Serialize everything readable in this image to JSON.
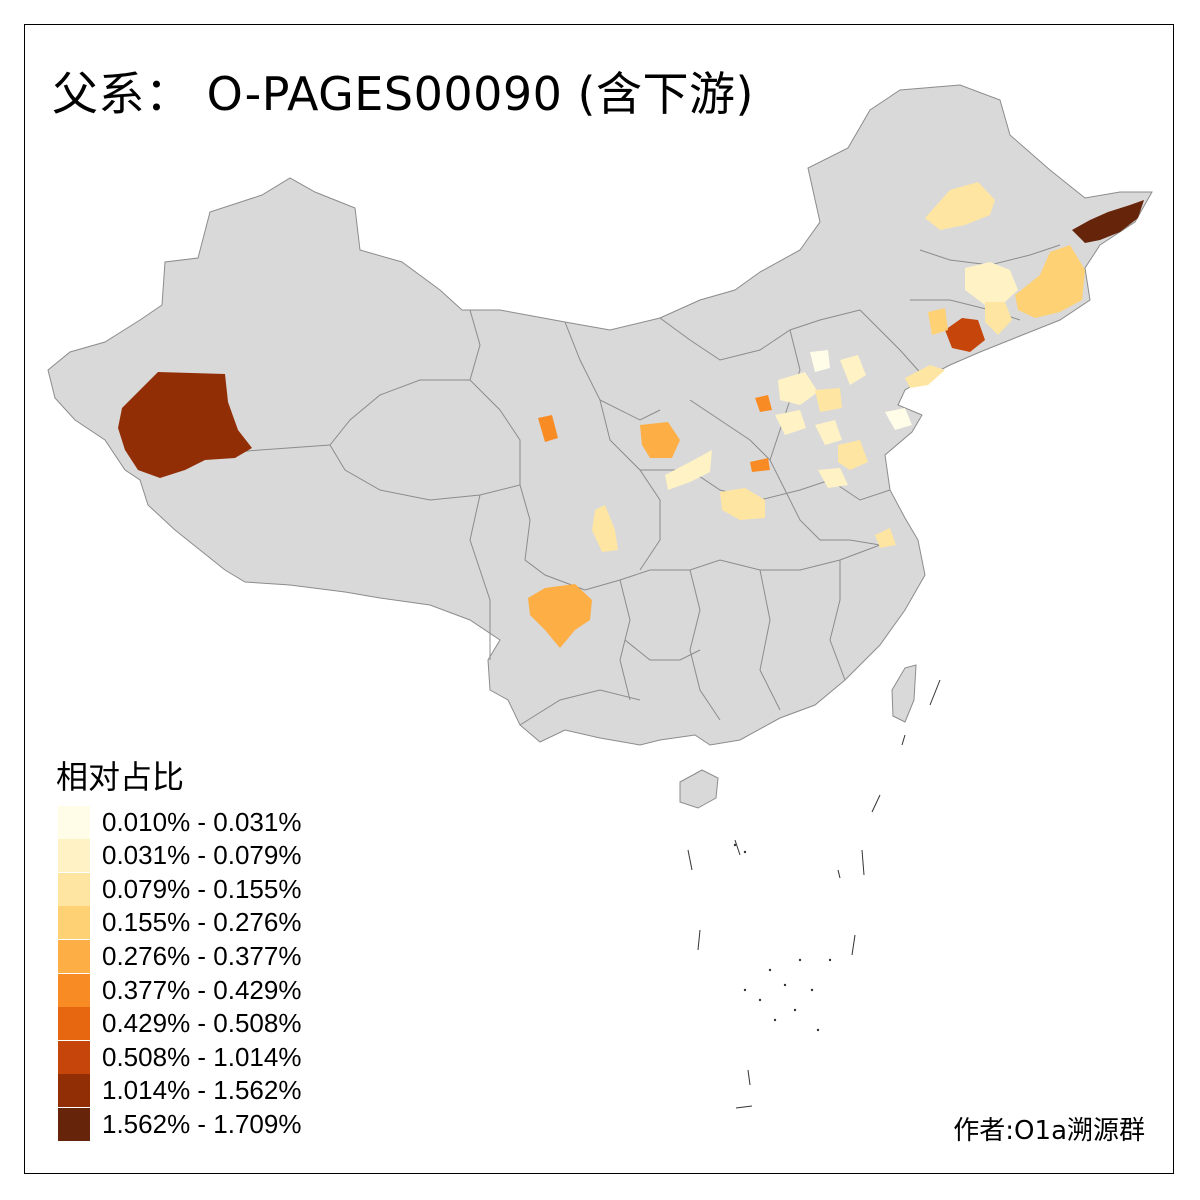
{
  "title": "父系： O-PAGES00090 (含下游)",
  "legend": {
    "title": "相对占比",
    "items": [
      {
        "label": "0.010% - 0.031%",
        "color": "#FFFCE8"
      },
      {
        "label": "0.031% - 0.079%",
        "color": "#FFF2C4"
      },
      {
        "label": "0.079% - 0.155%",
        "color": "#FEE5A2"
      },
      {
        "label": "0.155% - 0.276%",
        "color": "#FED174"
      },
      {
        "label": "0.276% - 0.377%",
        "color": "#FDAE45"
      },
      {
        "label": "0.377% - 0.429%",
        "color": "#F88B24"
      },
      {
        "label": "0.429% - 0.508%",
        "color": "#E6670F"
      },
      {
        "label": "0.508% - 1.014%",
        "color": "#C5450A"
      },
      {
        "label": "1.014% - 1.562%",
        "color": "#922E06"
      },
      {
        "label": "1.562% - 1.709%",
        "color": "#66250B"
      }
    ]
  },
  "author": "作者:O1a溯源群",
  "colors": {
    "land": "#D9D9D9",
    "border": "#8C8C8C",
    "background": "#FFFFFF"
  }
}
